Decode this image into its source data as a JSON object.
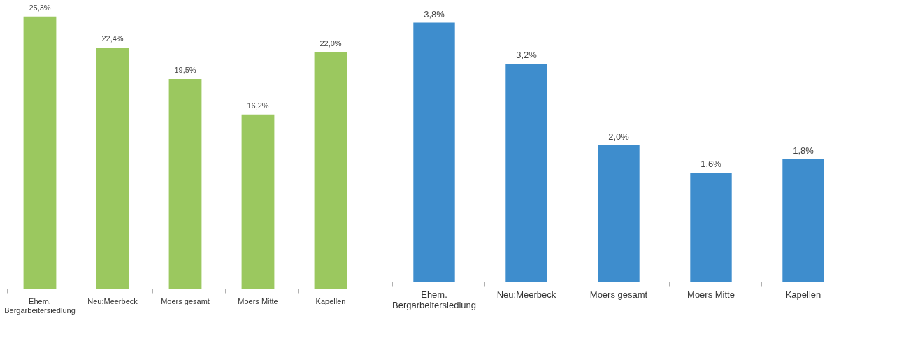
{
  "chart_data": [
    {
      "type": "bar",
      "categories": [
        "Ehem. Bergarbeitersiedlung",
        "Neu:Meerbeck",
        "Moers gesamt",
        "Moers Mitte",
        "Kapellen"
      ],
      "series": [
        {
          "color": "#9bc85f",
          "values": [
            25.3,
            22.4,
            19.5,
            16.2,
            22.0
          ],
          "value_labels": [
            "25,3%",
            "22,4%",
            "19,5%",
            "16,2%",
            "22,0%"
          ]
        }
      ],
      "grid": false,
      "tick_labels": "x"
    },
    {
      "type": "bar",
      "categories": [
        "Ehem. Bergarbeitersiedlung",
        "Neu:Meerbeck",
        "Moers gesamt",
        "Moers Mitte",
        "Kapellen"
      ],
      "series": [
        {
          "color": "#3e8dcd",
          "values": [
            3.8,
            3.2,
            2.0,
            1.6,
            1.8
          ],
          "value_labels": [
            "3,8%",
            "3,2%",
            "2,0%",
            "1,6%",
            "1,8%"
          ]
        }
      ],
      "grid": false,
      "tick_labels": "x"
    }
  ]
}
